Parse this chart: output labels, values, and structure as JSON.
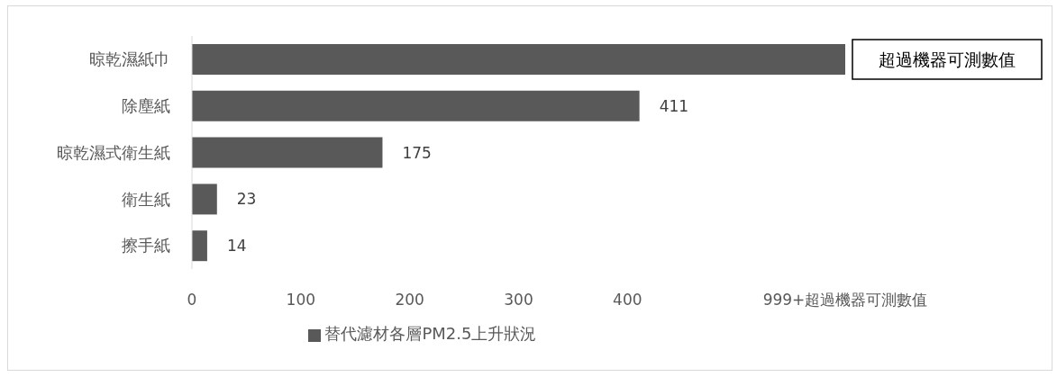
{
  "chart_data": {
    "type": "bar",
    "orientation": "horizontal",
    "categories": [
      "晾乾濕紙巾",
      "除塵紙",
      "晾乾濕式衛生紙",
      "衛生紙",
      "擦手紙"
    ],
    "series": [
      {
        "name": "替代濾材各層PM2.5上升狀況",
        "color": "#595959",
        "values": [
          600,
          411,
          175,
          23,
          14
        ],
        "value_labels": [
          "超過機器可測數值",
          "411",
          "175",
          "23",
          "14"
        ]
      }
    ],
    "xlim": [
      0,
      600
    ],
    "xticks": [
      0,
      100,
      200,
      300,
      400,
      {
        "value": 600,
        "label": "999+超過機器可測數值"
      }
    ],
    "legend": "bottom"
  }
}
